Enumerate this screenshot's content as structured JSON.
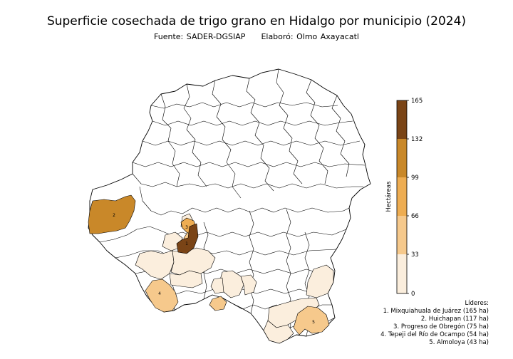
{
  "title": "Superficie cosechada de trigo grano en Hidalgo por municipio (2024)",
  "source": "Fuente: SADER-DGSIAP",
  "author": "Elaboró: Olmo Axayacatl",
  "colorbar": {
    "label": "Hectáreas",
    "ticks": [
      "165",
      "132",
      "99",
      "66",
      "33",
      "0"
    ],
    "bins": [
      {
        "from": 0,
        "to": 33,
        "color": "#fbeedd"
      },
      {
        "from": 33,
        "to": 66,
        "color": "#f6c98c"
      },
      {
        "from": 66,
        "to": 99,
        "color": "#eead52"
      },
      {
        "from": 99,
        "to": 132,
        "color": "#c98829"
      },
      {
        "from": 132,
        "to": 165,
        "color": "#7a4416"
      }
    ]
  },
  "leaders_title": "Líderes:",
  "leaders": [
    {
      "rank": "1",
      "text": "1. Mixquiahuala de Juárez (165 ha)",
      "value": 165
    },
    {
      "rank": "2",
      "text": "2. Huichapan (117 ha)",
      "value": 117
    },
    {
      "rank": "3",
      "text": "3. Progreso de Obregón (75 ha)",
      "value": 75
    },
    {
      "rank": "4",
      "text": "4. Tepeji del Río de Ocampo (54 ha)",
      "value": 54
    },
    {
      "rank": "5",
      "text": "5. Almoloya (43 ha)",
      "value": 43
    }
  ],
  "map_colors": {
    "border": "#000000",
    "empty": "#ffffff"
  }
}
